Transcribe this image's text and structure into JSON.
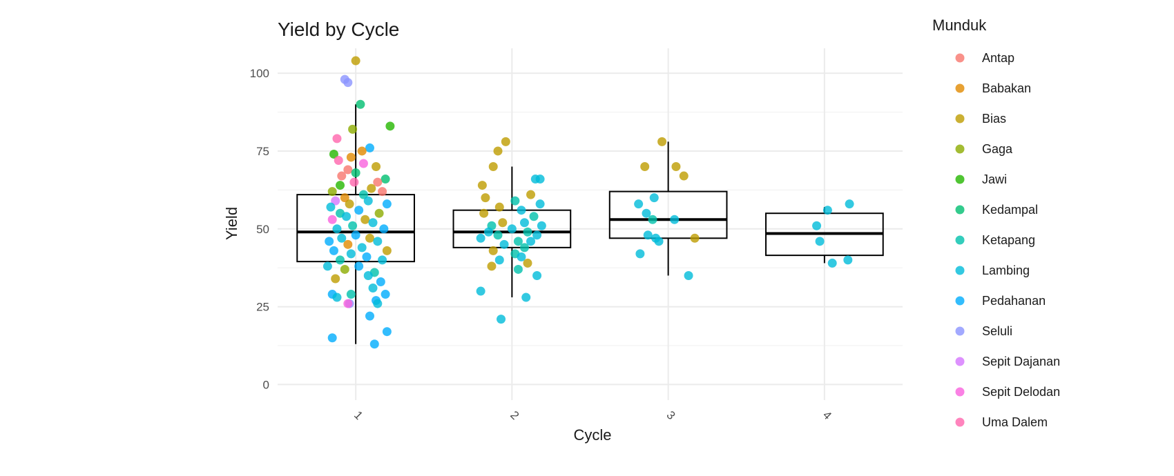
{
  "chart_data": {
    "type": "box+jitter",
    "title": "Yield by Cycle",
    "xlabel": "Cycle",
    "ylabel": "Yield",
    "categories": [
      "1",
      "2",
      "3",
      "4"
    ],
    "ylim": [
      -5,
      108
    ],
    "yticks": [
      0,
      25,
      50,
      75,
      100
    ],
    "grid": true,
    "legend": {
      "title": "Munduk",
      "position": "right",
      "entries": [
        {
          "name": "Antap",
          "color": "#F8766D"
        },
        {
          "name": "Babakan",
          "color": "#E18A00"
        },
        {
          "name": "Bias",
          "color": "#BE9C00"
        },
        {
          "name": "Gaga",
          "color": "#8CAB00"
        },
        {
          "name": "Jawi",
          "color": "#24B700"
        },
        {
          "name": "Kedampal",
          "color": "#00BE70"
        },
        {
          "name": "Ketapang",
          "color": "#00C1AB"
        },
        {
          "name": "Lambing",
          "color": "#00BBDA"
        },
        {
          "name": "Pedahanan",
          "color": "#00ACFC"
        },
        {
          "name": "Seluli",
          "color": "#8B93FF"
        },
        {
          "name": "Sepit Dajanan",
          "color": "#D575FE"
        },
        {
          "name": "Sepit Delodan",
          "color": "#F962DD"
        },
        {
          "name": "Uma Dalem",
          "color": "#FF65AC"
        }
      ]
    },
    "boxes": [
      {
        "category": "1",
        "q1": 39.5,
        "median": 49,
        "q3": 61,
        "whisker_low": 13,
        "whisker_high": 90
      },
      {
        "category": "2",
        "q1": 44,
        "median": 49,
        "q3": 56,
        "whisker_low": 28,
        "whisker_high": 70
      },
      {
        "category": "3",
        "q1": 47,
        "median": 53,
        "q3": 62,
        "whisker_low": 35,
        "whisker_high": 78
      },
      {
        "category": "4",
        "q1": 41.5,
        "median": 48.5,
        "q3": 55,
        "whisker_low": 39,
        "whisker_high": 57
      }
    ],
    "points": [
      {
        "cycle": 1,
        "dx": -0.07,
        "y": 98,
        "group": "Seluli"
      },
      {
        "cycle": 1,
        "dx": -0.05,
        "y": 97,
        "group": "Seluli"
      },
      {
        "cycle": 1,
        "dx": 0.0,
        "y": 104,
        "group": "Bias"
      },
      {
        "cycle": 1,
        "dx": 0.03,
        "y": 90,
        "group": "Kedampal"
      },
      {
        "cycle": 1,
        "dx": 0.22,
        "y": 83,
        "group": "Jawi"
      },
      {
        "cycle": 1,
        "dx": -0.02,
        "y": 82,
        "group": "Gaga"
      },
      {
        "cycle": 1,
        "dx": -0.12,
        "y": 79,
        "group": "Uma Dalem"
      },
      {
        "cycle": 1,
        "dx": 0.09,
        "y": 76,
        "group": "Pedahanan"
      },
      {
        "cycle": 1,
        "dx": -0.14,
        "y": 74,
        "group": "Jawi"
      },
      {
        "cycle": 1,
        "dx": -0.03,
        "y": 73,
        "group": "Babakan"
      },
      {
        "cycle": 1,
        "dx": 0.04,
        "y": 75,
        "group": "Babakan"
      },
      {
        "cycle": 1,
        "dx": 0.05,
        "y": 71,
        "group": "Sepit Delodan"
      },
      {
        "cycle": 1,
        "dx": -0.11,
        "y": 72,
        "group": "Uma Dalem"
      },
      {
        "cycle": 1,
        "dx": 0.13,
        "y": 70,
        "group": "Bias"
      },
      {
        "cycle": 1,
        "dx": -0.05,
        "y": 69,
        "group": "Antap"
      },
      {
        "cycle": 1,
        "dx": 0.0,
        "y": 68,
        "group": "Kedampal"
      },
      {
        "cycle": 1,
        "dx": -0.09,
        "y": 67,
        "group": "Antap"
      },
      {
        "cycle": 1,
        "dx": 0.19,
        "y": 66,
        "group": "Kedampal"
      },
      {
        "cycle": 1,
        "dx": 0.14,
        "y": 65,
        "group": "Antap"
      },
      {
        "cycle": 1,
        "dx": -0.15,
        "y": 62,
        "group": "Gaga"
      },
      {
        "cycle": 1,
        "dx": -0.1,
        "y": 64,
        "group": "Jawi"
      },
      {
        "cycle": 1,
        "dx": 0.1,
        "y": 63,
        "group": "Bias"
      },
      {
        "cycle": 1,
        "dx": -0.01,
        "y": 65,
        "group": "Uma Dalem"
      },
      {
        "cycle": 1,
        "dx": 0.17,
        "y": 62,
        "group": "Antap"
      },
      {
        "cycle": 1,
        "dx": -0.07,
        "y": 60,
        "group": "Babakan"
      },
      {
        "cycle": 1,
        "dx": 0.05,
        "y": 61,
        "group": "Ketapang"
      },
      {
        "cycle": 1,
        "dx": -0.13,
        "y": 59,
        "group": "Sepit Dajanan"
      },
      {
        "cycle": 1,
        "dx": 0.08,
        "y": 59,
        "group": "Lambing"
      },
      {
        "cycle": 1,
        "dx": 0.2,
        "y": 58,
        "group": "Pedahanan"
      },
      {
        "cycle": 1,
        "dx": -0.04,
        "y": 58,
        "group": "Bias"
      },
      {
        "cycle": 1,
        "dx": -0.16,
        "y": 57,
        "group": "Lambing"
      },
      {
        "cycle": 1,
        "dx": 0.02,
        "y": 56,
        "group": "Pedahanan"
      },
      {
        "cycle": 1,
        "dx": -0.1,
        "y": 55,
        "group": "Ketapang"
      },
      {
        "cycle": 1,
        "dx": 0.15,
        "y": 55,
        "group": "Gaga"
      },
      {
        "cycle": 1,
        "dx": -0.15,
        "y": 53,
        "group": "Sepit Delodan"
      },
      {
        "cycle": 1,
        "dx": -0.06,
        "y": 54,
        "group": "Lambing"
      },
      {
        "cycle": 1,
        "dx": 0.06,
        "y": 53,
        "group": "Bias"
      },
      {
        "cycle": 1,
        "dx": 0.11,
        "y": 52,
        "group": "Lambing"
      },
      {
        "cycle": 1,
        "dx": -0.02,
        "y": 51,
        "group": "Ketapang"
      },
      {
        "cycle": 1,
        "dx": 0.18,
        "y": 50,
        "group": "Pedahanan"
      },
      {
        "cycle": 1,
        "dx": -0.12,
        "y": 50,
        "group": "Lambing"
      },
      {
        "cycle": 1,
        "dx": 0.0,
        "y": 48,
        "group": "Pedahanan"
      },
      {
        "cycle": 1,
        "dx": 0.09,
        "y": 47,
        "group": "Bias"
      },
      {
        "cycle": 1,
        "dx": -0.09,
        "y": 47,
        "group": "Lambing"
      },
      {
        "cycle": 1,
        "dx": -0.17,
        "y": 46,
        "group": "Pedahanan"
      },
      {
        "cycle": 1,
        "dx": 0.14,
        "y": 46,
        "group": "Lambing"
      },
      {
        "cycle": 1,
        "dx": -0.05,
        "y": 45,
        "group": "Babakan"
      },
      {
        "cycle": 1,
        "dx": 0.04,
        "y": 44,
        "group": "Lambing"
      },
      {
        "cycle": 1,
        "dx": -0.14,
        "y": 43,
        "group": "Pedahanan"
      },
      {
        "cycle": 1,
        "dx": 0.2,
        "y": 43,
        "group": "Bias"
      },
      {
        "cycle": 1,
        "dx": -0.03,
        "y": 42,
        "group": "Lambing"
      },
      {
        "cycle": 1,
        "dx": 0.07,
        "y": 41,
        "group": "Pedahanan"
      },
      {
        "cycle": 1,
        "dx": -0.1,
        "y": 40,
        "group": "Ketapang"
      },
      {
        "cycle": 1,
        "dx": 0.17,
        "y": 40,
        "group": "Lambing"
      },
      {
        "cycle": 1,
        "dx": -0.18,
        "y": 38,
        "group": "Lambing"
      },
      {
        "cycle": 1,
        "dx": 0.02,
        "y": 38,
        "group": "Pedahanan"
      },
      {
        "cycle": 1,
        "dx": -0.07,
        "y": 37,
        "group": "Gaga"
      },
      {
        "cycle": 1,
        "dx": 0.12,
        "y": 36,
        "group": "Ketapang"
      },
      {
        "cycle": 1,
        "dx": -0.13,
        "y": 34,
        "group": "Bias"
      },
      {
        "cycle": 1,
        "dx": 0.08,
        "y": 35,
        "group": "Lambing"
      },
      {
        "cycle": 1,
        "dx": 0.16,
        "y": 33,
        "group": "Pedahanan"
      },
      {
        "cycle": 1,
        "dx": 0.11,
        "y": 31,
        "group": "Lambing"
      },
      {
        "cycle": 1,
        "dx": -0.15,
        "y": 29,
        "group": "Pedahanan"
      },
      {
        "cycle": 1,
        "dx": -0.03,
        "y": 29,
        "group": "Ketapang"
      },
      {
        "cycle": 1,
        "dx": 0.19,
        "y": 29,
        "group": "Pedahanan"
      },
      {
        "cycle": 1,
        "dx": -0.12,
        "y": 28,
        "group": "Lambing"
      },
      {
        "cycle": 1,
        "dx": 0.13,
        "y": 27,
        "group": "Pedahanan"
      },
      {
        "cycle": 1,
        "dx": -0.04,
        "y": 26,
        "group": "Seluli"
      },
      {
        "cycle": 1,
        "dx": -0.05,
        "y": 26,
        "group": "Sepit Delodan"
      },
      {
        "cycle": 1,
        "dx": 0.14,
        "y": 26,
        "group": "Lambing"
      },
      {
        "cycle": 1,
        "dx": 0.09,
        "y": 22,
        "group": "Pedahanan"
      },
      {
        "cycle": 1,
        "dx": 0.2,
        "y": 17,
        "group": "Pedahanan"
      },
      {
        "cycle": 1,
        "dx": -0.15,
        "y": 15,
        "group": "Pedahanan"
      },
      {
        "cycle": 1,
        "dx": 0.12,
        "y": 13,
        "group": "Pedahanan"
      },
      {
        "cycle": 2,
        "dx": -0.04,
        "y": 78,
        "group": "Bias"
      },
      {
        "cycle": 2,
        "dx": -0.09,
        "y": 75,
        "group": "Bias"
      },
      {
        "cycle": 2,
        "dx": -0.12,
        "y": 70,
        "group": "Bias"
      },
      {
        "cycle": 2,
        "dx": 0.15,
        "y": 66,
        "group": "Lambing"
      },
      {
        "cycle": 2,
        "dx": 0.18,
        "y": 66,
        "group": "Lambing"
      },
      {
        "cycle": 2,
        "dx": -0.19,
        "y": 64,
        "group": "Bias"
      },
      {
        "cycle": 2,
        "dx": 0.12,
        "y": 61,
        "group": "Bias"
      },
      {
        "cycle": 2,
        "dx": -0.17,
        "y": 60,
        "group": "Bias"
      },
      {
        "cycle": 2,
        "dx": 0.02,
        "y": 59,
        "group": "Ketapang"
      },
      {
        "cycle": 2,
        "dx": 0.18,
        "y": 58,
        "group": "Lambing"
      },
      {
        "cycle": 2,
        "dx": -0.08,
        "y": 57,
        "group": "Bias"
      },
      {
        "cycle": 2,
        "dx": 0.06,
        "y": 56,
        "group": "Lambing"
      },
      {
        "cycle": 2,
        "dx": -0.18,
        "y": 55,
        "group": "Bias"
      },
      {
        "cycle": 2,
        "dx": 0.14,
        "y": 54,
        "group": "Ketapang"
      },
      {
        "cycle": 2,
        "dx": -0.06,
        "y": 52,
        "group": "Bias"
      },
      {
        "cycle": 2,
        "dx": 0.08,
        "y": 52,
        "group": "Lambing"
      },
      {
        "cycle": 2,
        "dx": -0.13,
        "y": 51,
        "group": "Ketapang"
      },
      {
        "cycle": 2,
        "dx": 0.19,
        "y": 51,
        "group": "Lambing"
      },
      {
        "cycle": 2,
        "dx": 0.0,
        "y": 50,
        "group": "Lambing"
      },
      {
        "cycle": 2,
        "dx": -0.15,
        "y": 49,
        "group": "Lambing"
      },
      {
        "cycle": 2,
        "dx": 0.1,
        "y": 49,
        "group": "Ketapang"
      },
      {
        "cycle": 2,
        "dx": -0.09,
        "y": 48,
        "group": "Ketapang"
      },
      {
        "cycle": 2,
        "dx": 0.16,
        "y": 48,
        "group": "Lambing"
      },
      {
        "cycle": 2,
        "dx": -0.2,
        "y": 47,
        "group": "Lambing"
      },
      {
        "cycle": 2,
        "dx": 0.04,
        "y": 46,
        "group": "Ketapang"
      },
      {
        "cycle": 2,
        "dx": 0.12,
        "y": 46,
        "group": "Lambing"
      },
      {
        "cycle": 2,
        "dx": -0.05,
        "y": 45,
        "group": "Lambing"
      },
      {
        "cycle": 2,
        "dx": 0.08,
        "y": 44,
        "group": "Ketapang"
      },
      {
        "cycle": 2,
        "dx": -0.12,
        "y": 43,
        "group": "Bias"
      },
      {
        "cycle": 2,
        "dx": 0.02,
        "y": 42,
        "group": "Ketapang"
      },
      {
        "cycle": 2,
        "dx": 0.06,
        "y": 41,
        "group": "Lambing"
      },
      {
        "cycle": 2,
        "dx": -0.08,
        "y": 40,
        "group": "Lambing"
      },
      {
        "cycle": 2,
        "dx": 0.1,
        "y": 39,
        "group": "Bias"
      },
      {
        "cycle": 2,
        "dx": -0.13,
        "y": 38,
        "group": "Bias"
      },
      {
        "cycle": 2,
        "dx": 0.04,
        "y": 37,
        "group": "Ketapang"
      },
      {
        "cycle": 2,
        "dx": 0.16,
        "y": 35,
        "group": "Lambing"
      },
      {
        "cycle": 2,
        "dx": -0.2,
        "y": 30,
        "group": "Lambing"
      },
      {
        "cycle": 2,
        "dx": 0.09,
        "y": 28,
        "group": "Lambing"
      },
      {
        "cycle": 2,
        "dx": -0.07,
        "y": 21,
        "group": "Lambing"
      },
      {
        "cycle": 3,
        "dx": -0.04,
        "y": 78,
        "group": "Bias"
      },
      {
        "cycle": 3,
        "dx": -0.15,
        "y": 70,
        "group": "Bias"
      },
      {
        "cycle": 3,
        "dx": 0.05,
        "y": 70,
        "group": "Bias"
      },
      {
        "cycle": 3,
        "dx": 0.1,
        "y": 67,
        "group": "Bias"
      },
      {
        "cycle": 3,
        "dx": -0.09,
        "y": 60,
        "group": "Lambing"
      },
      {
        "cycle": 3,
        "dx": -0.19,
        "y": 58,
        "group": "Lambing"
      },
      {
        "cycle": 3,
        "dx": -0.14,
        "y": 55,
        "group": "Lambing"
      },
      {
        "cycle": 3,
        "dx": -0.1,
        "y": 53,
        "group": "Ketapang"
      },
      {
        "cycle": 3,
        "dx": 0.04,
        "y": 53,
        "group": "Lambing"
      },
      {
        "cycle": 3,
        "dx": -0.13,
        "y": 48,
        "group": "Lambing"
      },
      {
        "cycle": 3,
        "dx": -0.08,
        "y": 47,
        "group": "Lambing"
      },
      {
        "cycle": 3,
        "dx": -0.06,
        "y": 46,
        "group": "Lambing"
      },
      {
        "cycle": 3,
        "dx": 0.17,
        "y": 47,
        "group": "Bias"
      },
      {
        "cycle": 3,
        "dx": -0.18,
        "y": 42,
        "group": "Lambing"
      },
      {
        "cycle": 3,
        "dx": 0.13,
        "y": 35,
        "group": "Lambing"
      },
      {
        "cycle": 4,
        "dx": 0.02,
        "y": 56,
        "group": "Lambing"
      },
      {
        "cycle": 4,
        "dx": 0.16,
        "y": 58,
        "group": "Lambing"
      },
      {
        "cycle": 4,
        "dx": -0.05,
        "y": 51,
        "group": "Lambing"
      },
      {
        "cycle": 4,
        "dx": -0.03,
        "y": 46,
        "group": "Lambing"
      },
      {
        "cycle": 4,
        "dx": 0.15,
        "y": 40,
        "group": "Lambing"
      },
      {
        "cycle": 4,
        "dx": 0.05,
        "y": 39,
        "group": "Lambing"
      }
    ]
  }
}
